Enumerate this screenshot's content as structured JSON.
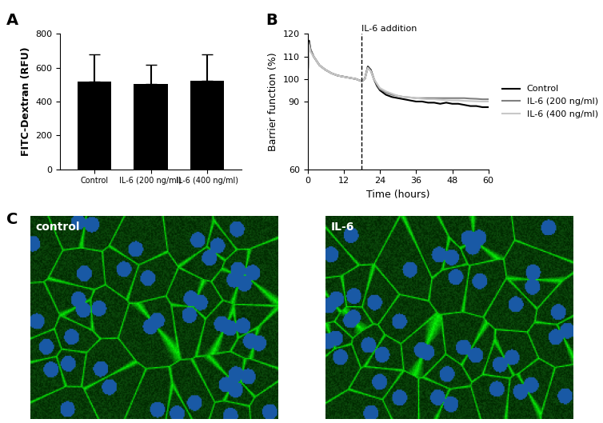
{
  "chart_data": [
    {
      "type": "bar",
      "panel_label": "A",
      "y_label": "FITC-Dextran (RFU)",
      "categories": [
        "Control",
        "IL-6 (200 ng/ml)",
        "IL-6 (400 ng/ml)"
      ],
      "values": [
        520,
        505,
        525
      ],
      "errors": [
        160,
        112,
        155
      ],
      "color": "#000000",
      "ylim": [
        0,
        800
      ],
      "yticks": [
        0,
        200,
        400,
        600,
        800
      ]
    },
    {
      "type": "line",
      "panel_label": "B",
      "x_label": "Time (hours)",
      "y_label": "Barrier function (%)",
      "annotations": [
        {
          "text": "IL-6 addition",
          "x": 18
        }
      ],
      "x": [
        0,
        0.5,
        1,
        2,
        3,
        4,
        6,
        8,
        10,
        12,
        14,
        16,
        17,
        18,
        19,
        20,
        21,
        22,
        23,
        24,
        26,
        28,
        30,
        32,
        34,
        36,
        38,
        40,
        42,
        44,
        46,
        48,
        50,
        52,
        54,
        56,
        58,
        60
      ],
      "series": [
        {
          "name": "Control",
          "color": "#000000",
          "values": [
            100,
            117,
            113,
            110,
            108,
            106,
            104,
            102.5,
            101.5,
            101,
            100.5,
            100,
            99.5,
            99,
            100,
            105.5,
            104,
            100,
            97,
            95,
            93,
            92,
            91.5,
            91,
            90.5,
            90,
            90,
            89.5,
            89.5,
            89,
            89.5,
            89,
            89,
            88.5,
            88,
            88,
            87.5,
            87.5
          ]
        },
        {
          "name": "IL-6 (200 ng/ml)",
          "color": "#808080",
          "values": [
            100,
            116,
            113,
            110,
            108,
            106,
            104,
            102.5,
            101.5,
            101,
            100.5,
            100,
            99.5,
            99,
            100,
            105,
            103.5,
            100,
            97.5,
            95.5,
            94,
            93,
            92.5,
            92,
            91.8,
            91.5,
            91.5,
            91.5,
            91.5,
            91.5,
            91.5,
            91.5,
            91.5,
            91.5,
            91.3,
            91.2,
            91,
            91
          ]
        },
        {
          "name": "IL-6 (400 ng/ml)",
          "color": "#c8c8c8",
          "values": [
            100,
            115,
            112,
            110,
            108,
            106,
            104,
            102.5,
            101.5,
            101,
            100.5,
            100,
            99.5,
            99,
            100,
            105,
            103.5,
            100,
            98,
            96,
            94.5,
            93.5,
            92.5,
            92,
            91.8,
            91.5,
            91.2,
            91,
            91,
            90.8,
            90.6,
            90.5,
            90.5,
            90.3,
            90.2,
            90.1,
            90,
            90
          ]
        }
      ],
      "xlim": [
        0,
        60
      ],
      "xticks": [
        0,
        12,
        24,
        36,
        48,
        60
      ],
      "ylim": [
        60,
        120
      ],
      "yticks": [
        60,
        90,
        100,
        110,
        120
      ],
      "legend": "right"
    }
  ],
  "images": {
    "panel_label": "C",
    "panels": [
      {
        "label": "control"
      },
      {
        "label": "IL-6"
      }
    ]
  }
}
